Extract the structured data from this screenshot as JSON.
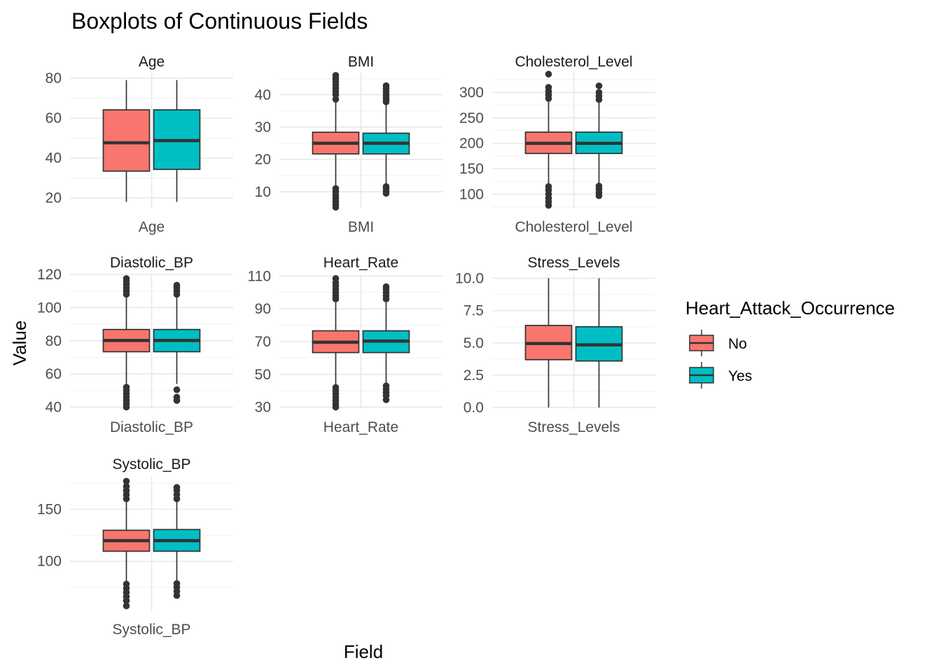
{
  "chart_data": {
    "type": "boxplot",
    "title": "Boxplots of Continuous Fields",
    "xlabel": "Field",
    "ylabel": "Value",
    "legend": {
      "title": "Heart_Attack_Occurrence",
      "placement": "right",
      "entries": [
        {
          "label": "No",
          "color": "#F8766D"
        },
        {
          "label": "Yes",
          "color": "#00BFC4"
        }
      ]
    },
    "grid": true,
    "facets": [
      {
        "name": "Age",
        "ylim": [
          15,
          83
        ],
        "yticks": [
          20,
          40,
          60,
          80
        ],
        "yticklabels": [
          "20",
          "40",
          "60",
          "80"
        ],
        "groups": [
          {
            "series": "No",
            "whisker_low": 18,
            "q1": 33.4,
            "median": 47.6,
            "q3": 64.1,
            "whisker_high": 79,
            "outliers": []
          },
          {
            "series": "Yes",
            "whisker_low": 18,
            "q1": 34.3,
            "median": 48.7,
            "q3": 64.1,
            "whisker_high": 79,
            "outliers": []
          }
        ]
      },
      {
        "name": "BMI",
        "ylim": [
          5,
          47
        ],
        "yticks": [
          10,
          20,
          30,
          40
        ],
        "yticklabels": [
          "10",
          "20",
          "30",
          "40"
        ],
        "groups": [
          {
            "series": "No",
            "whisker_low": 12,
            "q1": 21.7,
            "median": 25,
            "q3": 28.4,
            "whisker_high": 38,
            "outliers": [
              5.2,
              6,
              7,
              8,
              9,
              10,
              11,
              38.6,
              40,
              41,
              42,
              43,
              44,
              45,
              46
            ]
          },
          {
            "series": "Yes",
            "whisker_low": 12.3,
            "q1": 21.7,
            "median": 25,
            "q3": 28.1,
            "whisker_high": 37.3,
            "outliers": [
              9.5,
              10.2,
              11,
              11.6,
              37.8,
              38.5,
              39.2,
              40,
              41,
              42,
              42.8
            ]
          }
        ]
      },
      {
        "name": "Cholesterol_Level",
        "ylim": [
          73,
          340
        ],
        "yticks": [
          100,
          150,
          200,
          250,
          300
        ],
        "yticklabels": [
          "100",
          "150",
          "200",
          "250",
          "300"
        ],
        "groups": [
          {
            "series": "No",
            "whisker_low": 120,
            "q1": 180,
            "median": 200,
            "q3": 222,
            "whisker_high": 285,
            "outliers": [
              78,
              85,
              92,
              100,
              108,
              115,
              288,
              295,
              302,
              310,
              336
            ]
          },
          {
            "series": "Yes",
            "whisker_low": 121,
            "q1": 180,
            "median": 200,
            "q3": 222,
            "whisker_high": 282,
            "outliers": [
              97,
              103,
              110,
              116,
              286,
              293,
              300,
              313
            ]
          }
        ]
      },
      {
        "name": "Diastolic_BP",
        "ylim": [
          39,
          120
        ],
        "yticks": [
          40,
          60,
          80,
          100,
          120
        ],
        "yticklabels": [
          "40",
          "60",
          "80",
          "100",
          "120"
        ],
        "groups": [
          {
            "series": "No",
            "whisker_low": 54,
            "q1": 73.4,
            "median": 80.2,
            "q3": 86.8,
            "whisker_high": 106,
            "outliers": [
              40,
              42,
              44,
              46,
              48,
              50,
              52,
              108,
              110,
              112,
              114,
              116,
              117.5
            ]
          },
          {
            "series": "Yes",
            "whisker_low": 54,
            "q1": 73.4,
            "median": 80.2,
            "q3": 86.8,
            "whisker_high": 106,
            "outliers": [
              44,
              46,
              50.5,
              108,
              110,
              112,
              113.5
            ]
          }
        ]
      },
      {
        "name": "Heart_Rate",
        "ylim": [
          29,
          111
        ],
        "yticks": [
          30,
          50,
          70,
          90,
          110
        ],
        "yticklabels": [
          "30",
          "50",
          "70",
          "90",
          "110"
        ],
        "groups": [
          {
            "series": "No",
            "whisker_low": 44,
            "q1": 63.3,
            "median": 69.6,
            "q3": 76.6,
            "whisker_high": 94,
            "outliers": [
              30,
              32,
              34,
              36,
              38,
              40,
              42,
              96,
              98,
              100,
              102,
              104,
              106,
              108.5
            ]
          },
          {
            "series": "Yes",
            "whisker_low": 44,
            "q1": 63.3,
            "median": 70.3,
            "q3": 76.6,
            "whisker_high": 94,
            "outliers": [
              34.5,
              37,
              39,
              41,
              43,
              96,
              98,
              100,
              102,
              103.5
            ]
          }
        ]
      },
      {
        "name": "Stress_Levels",
        "ylim": [
          -0.1,
          10.3
        ],
        "yticks": [
          0,
          2.5,
          5,
          7.5,
          10
        ],
        "yticklabels": [
          "0.0",
          "2.5",
          "5.0",
          "7.5",
          "10.0"
        ],
        "groups": [
          {
            "series": "No",
            "whisker_low": 0,
            "q1": 3.7,
            "median": 4.95,
            "q3": 6.35,
            "whisker_high": 10,
            "outliers": []
          },
          {
            "series": "Yes",
            "whisker_low": 0,
            "q1": 3.6,
            "median": 4.85,
            "q3": 6.25,
            "whisker_high": 10,
            "outliers": []
          }
        ]
      },
      {
        "name": "Systolic_BP",
        "ylim": [
          52,
          182
        ],
        "yticks": [
          100,
          150
        ],
        "yticklabels": [
          "100",
          "150"
        ],
        "groups": [
          {
            "series": "No",
            "whisker_low": 80,
            "q1": 109.6,
            "median": 119.8,
            "q3": 129.8,
            "whisker_high": 158,
            "outliers": [
              57,
              62,
              66,
              70,
              74,
              78,
              160,
              164,
              168,
              172,
              177
            ]
          },
          {
            "series": "Yes",
            "whisker_low": 80,
            "q1": 109.6,
            "median": 119.8,
            "q3": 130.5,
            "whisker_high": 158,
            "outliers": [
              67,
              71,
              75,
              78.5,
              160,
              164,
              168,
              171
            ]
          }
        ]
      }
    ]
  }
}
